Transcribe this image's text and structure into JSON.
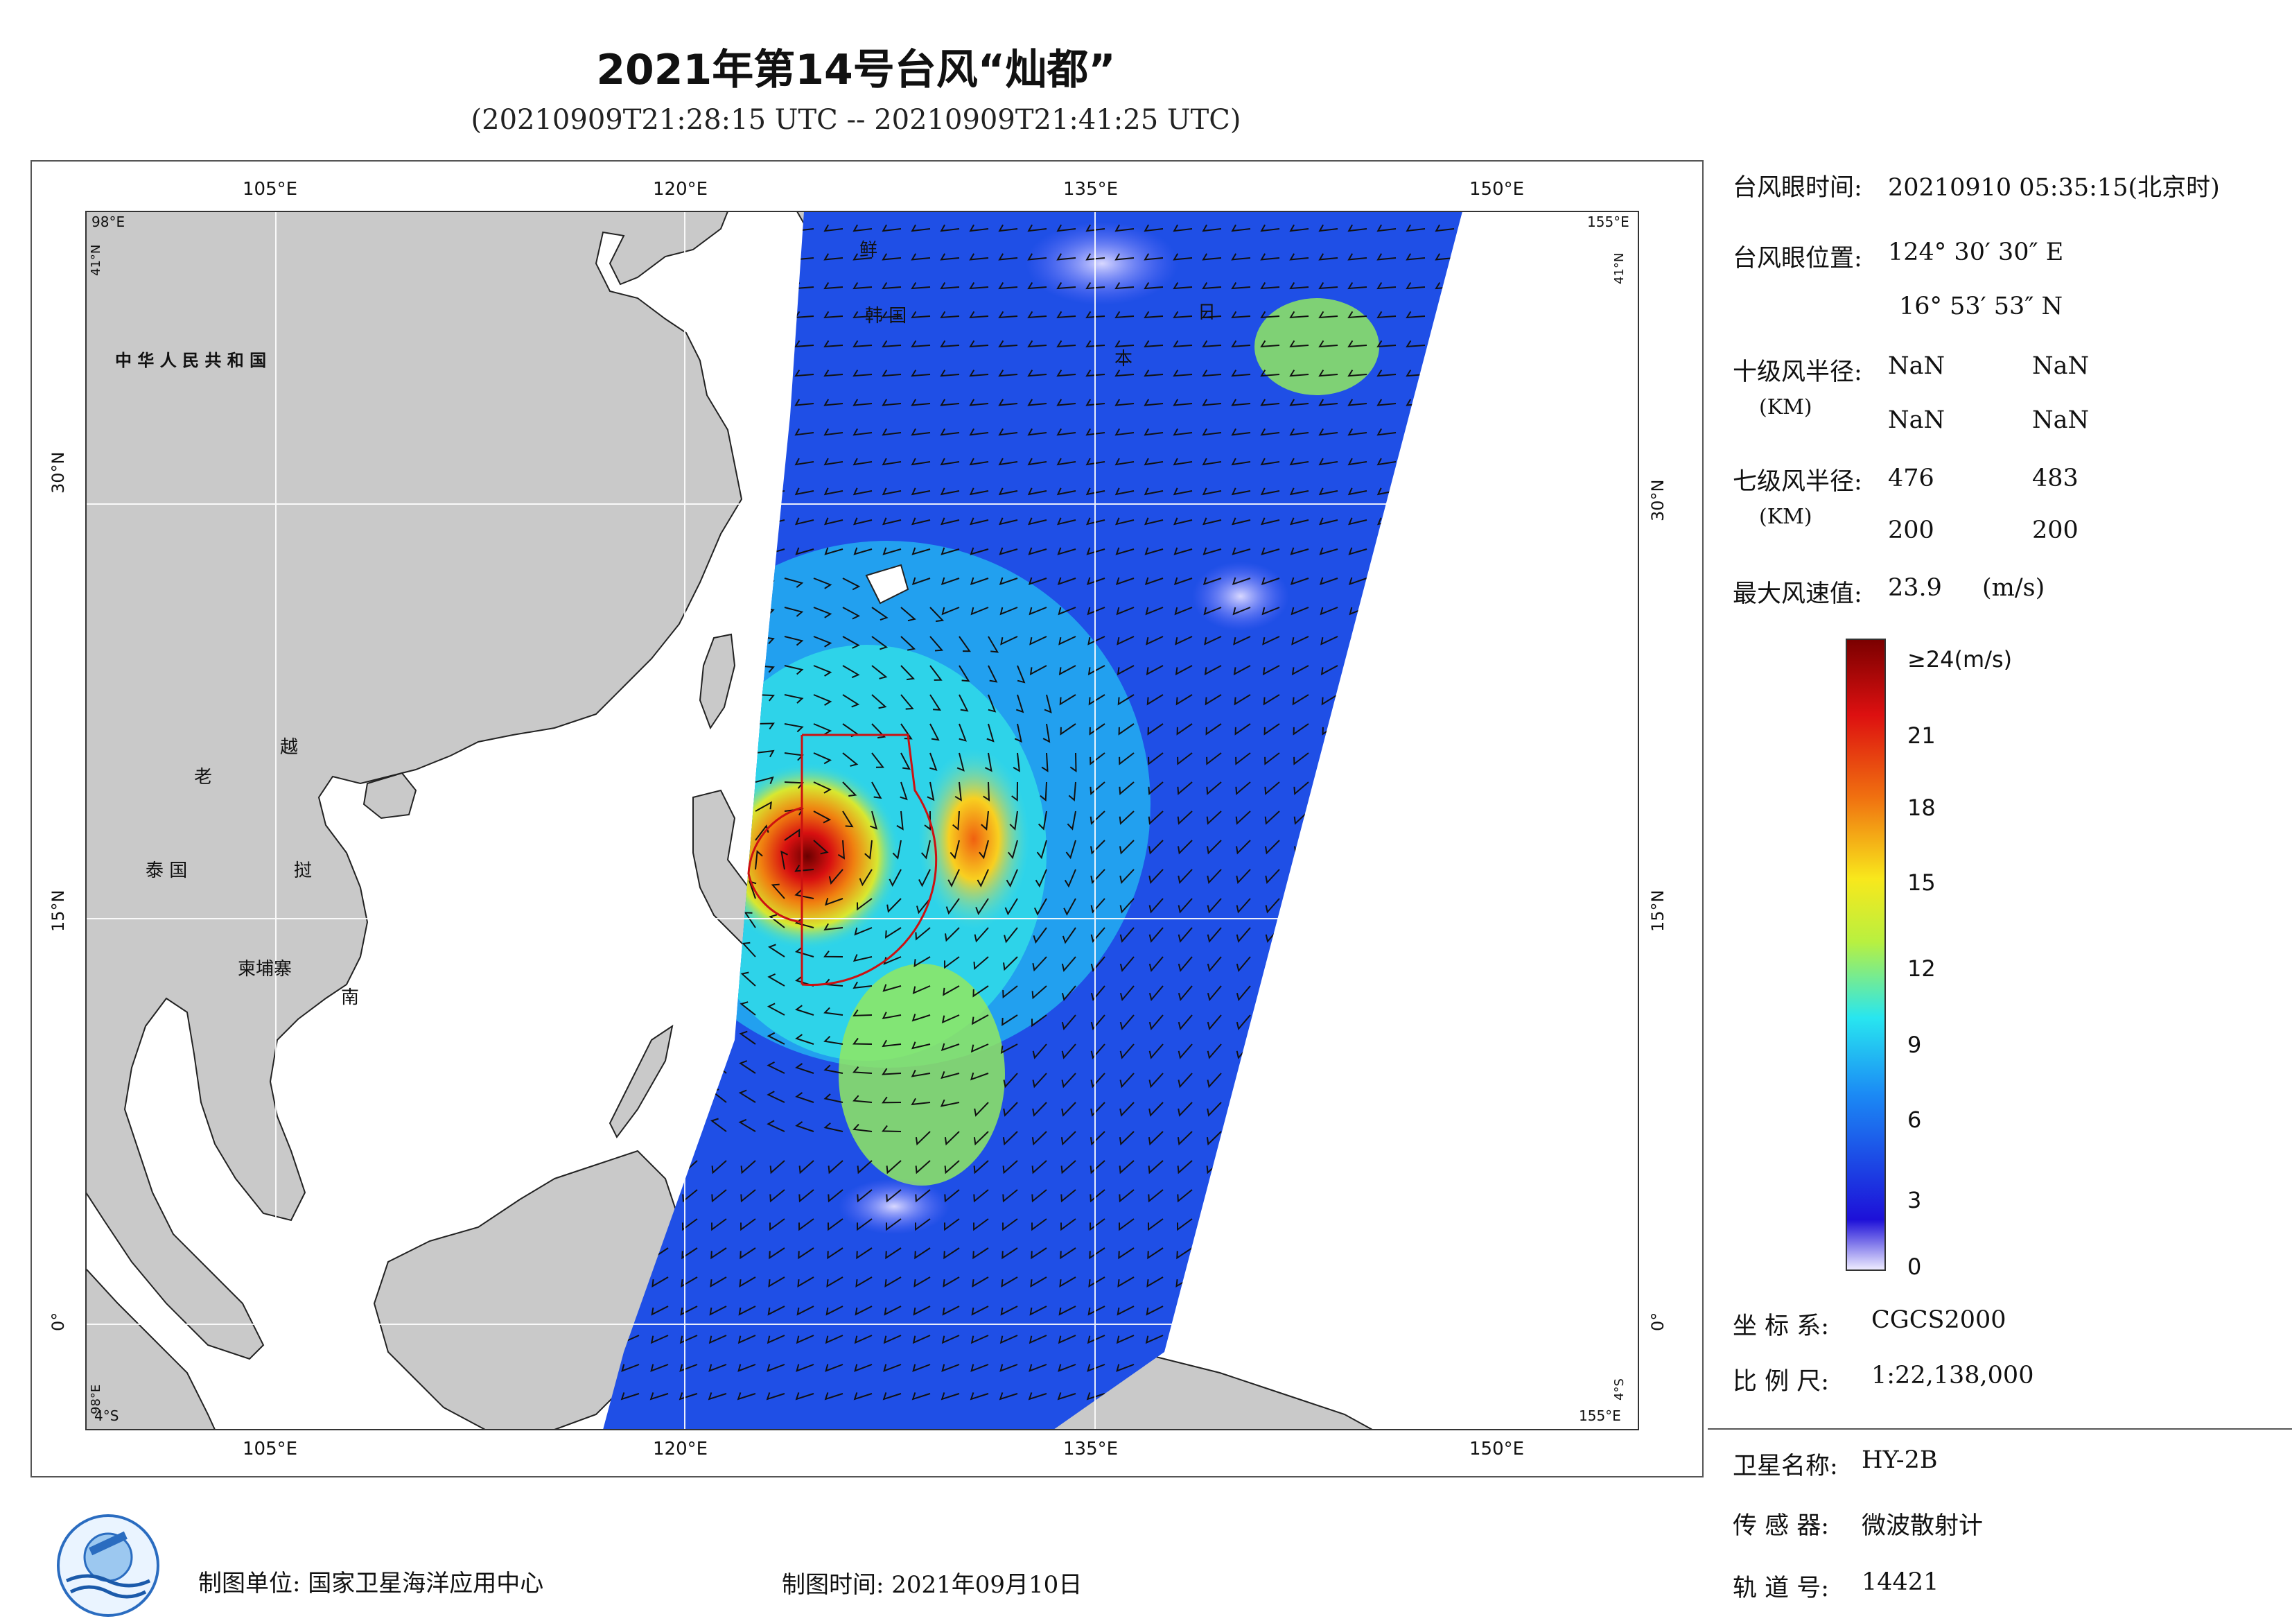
{
  "header": {
    "title": "2021年第14号台风“灿都”",
    "subtitle": "(20210909T21:28:15 UTC -- 20210909T21:41:25 UTC)"
  },
  "map": {
    "lon_labels": [
      "105°E",
      "120°E",
      "135°E",
      "150°E"
    ],
    "lat_labels": [
      "30°N",
      "15°N",
      "0°"
    ],
    "corner_labels": {
      "nw_lon": "98°E",
      "nw_lat": "41°N",
      "ne_lon": "155°E",
      "ne_lat": "41°N",
      "sw_lon": "98°E",
      "sw_lat": "4°S",
      "se_lon": "155°E",
      "se_lat": "4°S"
    },
    "place_labels": [
      "中 华 人 民 共 和 国",
      "鲜",
      "韩 国",
      "日",
      "本",
      "老",
      "越",
      "泰 国",
      "挝",
      "柬埔寨",
      "南"
    ],
    "colors": {
      "land": "#c9c9c9",
      "ocean": "#ffffff",
      "typhoon_circle": "#cc1111",
      "wind_barb": "#111111"
    }
  },
  "info": {
    "eye_time_label": "台风眼时间:",
    "eye_time_value": "20210910 05:35:15(北京时)",
    "eye_pos_label": "台风眼位置:",
    "eye_lon": "124° 30′ 30″ E",
    "eye_lat": "16° 53′ 53″ N",
    "r10_label": "十级风半径:",
    "r10_unit": "(KM)",
    "r10_values": [
      "NaN",
      "NaN",
      "NaN",
      "NaN"
    ],
    "r7_label": "七级风半径:",
    "r7_unit": "(KM)",
    "r7_values": [
      "476",
      "483",
      "200",
      "200"
    ],
    "max_wind_label": "最大风速值:",
    "max_wind_value": "23.9",
    "max_wind_unit": "(m/s)"
  },
  "colorbar": {
    "top_label": "≥24(m/s)",
    "ticks": [
      "21",
      "18",
      "15",
      "12",
      "9",
      "6",
      "3",
      "0"
    ],
    "colors": [
      "#f0eeff",
      "#1d10d8",
      "#1b8bf5",
      "#28e6f0",
      "#b8f040",
      "#f8e81c",
      "#f07010",
      "#dd1010",
      "#7a0000"
    ]
  },
  "meta": {
    "coord_label": "坐 标 系:",
    "coord_value": "CGCS2000",
    "scale_label": "比 例 尺:",
    "scale_value": "1:22,138,000",
    "sat_label": "卫星名称:",
    "sat_value": "HY-2B",
    "sensor_label": "传 感 器:",
    "sensor_value": "微波散射计",
    "orbit_label": "轨 道 号:",
    "orbit_value": "14421"
  },
  "footer": {
    "producer": "制图单位: 国家卫星海洋应用中心",
    "date": "制图时间: 2021年09月10日"
  }
}
